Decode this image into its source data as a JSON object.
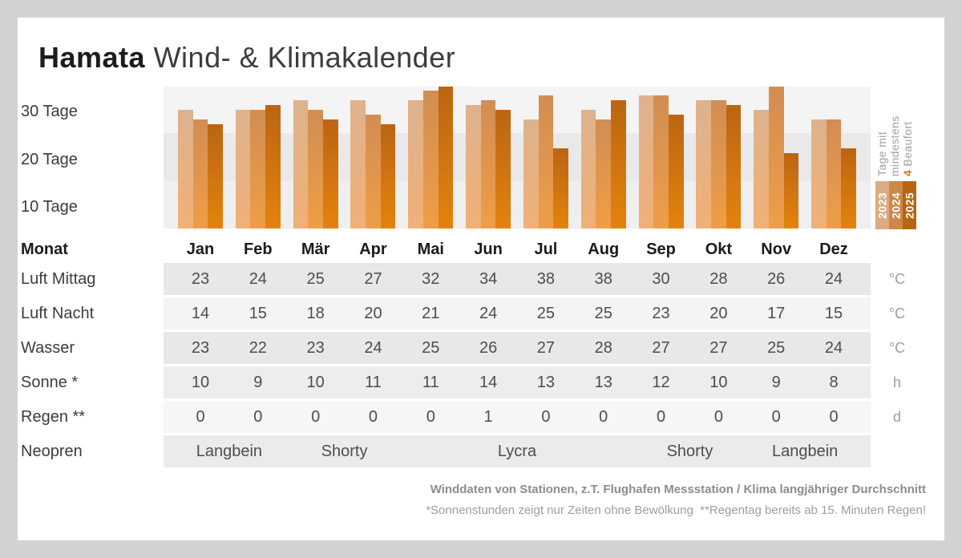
{
  "page": {
    "title_bold": "Hamata",
    "title_light": " Wind- & Klimakalender",
    "background_color": "#d2d2d2",
    "card_color": "#ffffff"
  },
  "chart_data": {
    "type": "bar",
    "title": "Tage mit mindestens 4 Beaufort",
    "categories": [
      "Jan",
      "Feb",
      "Mär",
      "Apr",
      "Mai",
      "Jun",
      "Jul",
      "Aug",
      "Sep",
      "Okt",
      "Nov",
      "Dez"
    ],
    "series": [
      {
        "name": "2023",
        "color_top": "#ddb28e",
        "color_bottom": "#f1b077",
        "values": [
          30,
          30,
          32,
          32,
          32,
          31,
          28,
          30,
          33,
          32,
          30,
          28
        ]
      },
      {
        "name": "2024",
        "color_top": "#d28d53",
        "color_bottom": "#ee9e47",
        "values": [
          28,
          30,
          30,
          29,
          34,
          32,
          33,
          28,
          33,
          32,
          35,
          28
        ]
      },
      {
        "name": "2025",
        "color_top": "#bb6513",
        "color_bottom": "#e3830d",
        "values": [
          27,
          31,
          28,
          27,
          35,
          30,
          22,
          32,
          29,
          31,
          21,
          22
        ]
      }
    ],
    "ytick_labels": [
      "30 Tage",
      "20 Tage",
      "10 Tage"
    ],
    "ylim": [
      0,
      35
    ],
    "unit": "Tage",
    "grid": "horizontal-bands",
    "legend_position": "right-rotated"
  },
  "legend": {
    "line1": "Tage mit",
    "line2": "mindestens",
    "line3_accent": "4",
    "line3_rest": " Beaufort",
    "years": [
      {
        "label": "2023",
        "color": "#dcab82"
      },
      {
        "label": "2024",
        "color": "#cc8749"
      },
      {
        "label": "2025",
        "color": "#b76511"
      }
    ]
  },
  "table": {
    "month_header_label": "Monat",
    "months": [
      "Jan",
      "Feb",
      "Mär",
      "Apr",
      "Mai",
      "Jun",
      "Jul",
      "Aug",
      "Sep",
      "Okt",
      "Nov",
      "Dez"
    ],
    "rows": [
      {
        "label": "Luft Mittag",
        "unit": "°C",
        "values": [
          "23",
          "24",
          "25",
          "27",
          "32",
          "34",
          "38",
          "38",
          "30",
          "28",
          "26",
          "24"
        ]
      },
      {
        "label": "Luft Nacht",
        "unit": "°C",
        "values": [
          "14",
          "15",
          "18",
          "20",
          "21",
          "24",
          "25",
          "25",
          "23",
          "20",
          "17",
          "15"
        ]
      },
      {
        "label": "Wasser",
        "unit": "°C",
        "values": [
          "23",
          "22",
          "23",
          "24",
          "25",
          "26",
          "27",
          "28",
          "27",
          "27",
          "25",
          "24"
        ]
      },
      {
        "label": "Sonne *",
        "unit": "h",
        "values": [
          "10",
          "9",
          "10",
          "11",
          "11",
          "14",
          "13",
          "13",
          "12",
          "10",
          "9",
          "8"
        ]
      },
      {
        "label": "Regen **",
        "unit": "d",
        "values": [
          "0",
          "0",
          "0",
          "0",
          "0",
          "1",
          "0",
          "0",
          "0",
          "0",
          "0",
          "0"
        ]
      },
      {
        "label": "Neopren",
        "unit": "",
        "zones": [
          {
            "label": "Langbein",
            "from": 0,
            "to": 1
          },
          {
            "label": "Shorty",
            "from": 2,
            "to": 3
          },
          {
            "label": "Lycra",
            "from": 4,
            "to": 7
          },
          {
            "label": "Shorty",
            "from": 8,
            "to": 9
          },
          {
            "label": "Langbein",
            "from": 10,
            "to": 11
          }
        ]
      }
    ]
  },
  "footer": {
    "line1": "Winddaten von Stationen, z.T. Flughafen Messstation / Klima langjähriger Durchschnitt",
    "line2": "*Sonnenstunden zeigt nur Zeiten ohne Bewölkung  **Regentag bereits ab 15. Minuten Regen!"
  }
}
